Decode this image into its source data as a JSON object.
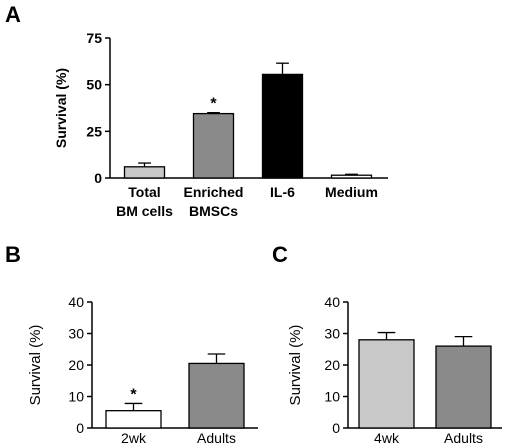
{
  "panels": {
    "a": "A",
    "b": "B",
    "c": "C"
  },
  "chart_data": [
    {
      "panel": "A",
      "type": "bar",
      "categories": [
        [
          "Total",
          "BM cells"
        ],
        [
          "Enriched",
          "BMSCs"
        ],
        [
          "IL-6"
        ],
        [
          "Medium"
        ]
      ],
      "values": [
        6,
        34.5,
        55.5,
        1.5
      ],
      "errors": [
        2,
        0.5,
        6,
        0.5
      ],
      "colors": [
        "#c8c8c8",
        "#8a8a8a",
        "#000000",
        "#ffffff"
      ],
      "annotations": [
        "",
        "*",
        "",
        ""
      ],
      "ylabel": "Survival (%)",
      "ylim": [
        0,
        75
      ],
      "yticks": [
        0,
        25,
        50,
        75
      ],
      "grid": false
    },
    {
      "panel": "B",
      "type": "bar",
      "categories": [
        "2wk",
        "Adults"
      ],
      "values": [
        5.5,
        20.5
      ],
      "errors": [
        2.3,
        3
      ],
      "colors": [
        "#ffffff",
        "#8a8a8a"
      ],
      "annotations": [
        "*",
        ""
      ],
      "ylabel": "Survival (%)",
      "ylim": [
        0,
        40
      ],
      "yticks": [
        0,
        10,
        20,
        30,
        40
      ],
      "grid": false
    },
    {
      "panel": "C",
      "type": "bar",
      "categories": [
        "4wk",
        "Adults"
      ],
      "values": [
        28,
        26
      ],
      "errors": [
        2.3,
        3
      ],
      "colors": [
        "#c8c8c8",
        "#8a8a8a"
      ],
      "annotations": [
        "",
        ""
      ],
      "ylabel": "Survival (%)",
      "ylim": [
        0,
        40
      ],
      "yticks": [
        0,
        10,
        20,
        30,
        40
      ],
      "grid": false
    }
  ]
}
